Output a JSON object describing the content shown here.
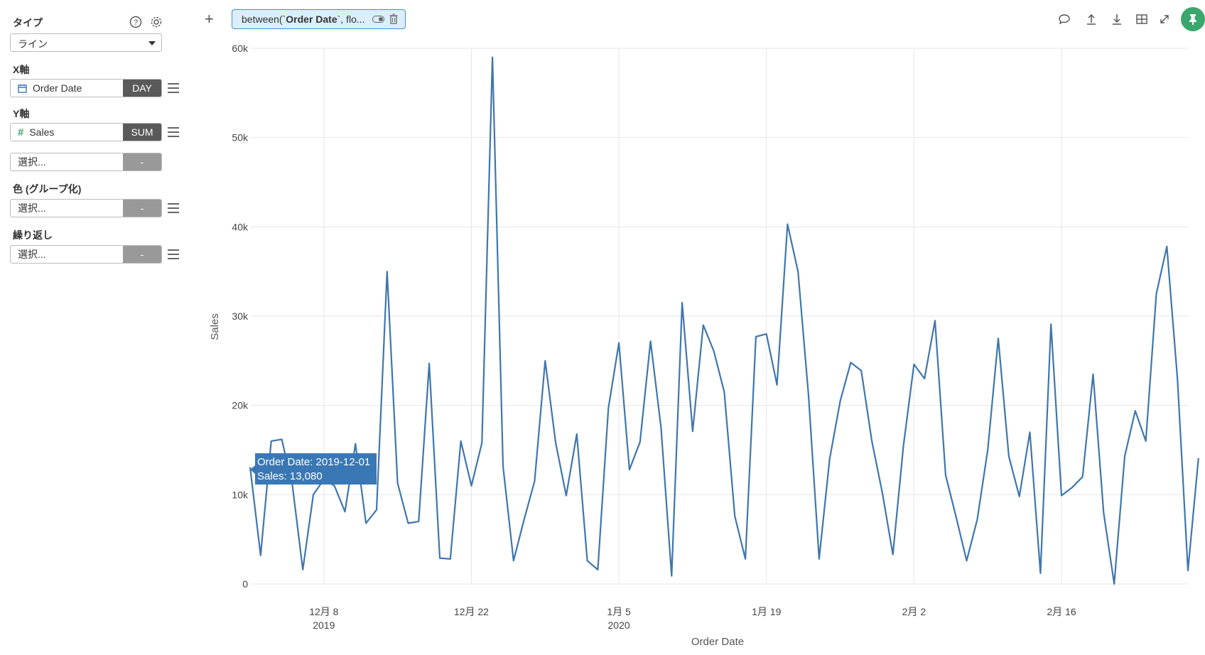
{
  "sidebar": {
    "type_label": "タイプ",
    "type_value": "ライン",
    "x_axis_label": "X軸",
    "x_field": "Order Date",
    "x_agg": "DAY",
    "y_axis_label": "Y軸",
    "y_field": "Sales",
    "y_agg": "SUM",
    "y_extra_placeholder": "選択...",
    "y_extra_agg": "-",
    "color_label": "色 (グループ化)",
    "color_placeholder": "選択...",
    "color_agg": "-",
    "repeat_label": "繰り返し",
    "repeat_placeholder": "選択...",
    "repeat_agg": "-"
  },
  "topbar": {
    "plus": "+",
    "filter_prefix": "between(`",
    "filter_bold": "Order Date",
    "filter_suffix": "`, flo..."
  },
  "icons": {
    "help": "question-circle-icon",
    "settings": "gear-icon",
    "comment": "comment-icon",
    "upload": "upload-icon",
    "download": "download-icon",
    "table": "table-icon",
    "expand": "expand-icon",
    "pin": "pin-icon"
  },
  "colors": {
    "line": "#3f76ad",
    "tooltip": "#3a78b5",
    "pin": "#3aa76d",
    "chip_bg": "#dbeefa",
    "chip_border": "#4a90c8"
  },
  "tooltip": {
    "line1": "Order Date: 2019-12-01",
    "line2": "Sales: 13,080"
  },
  "chart_data": {
    "type": "line",
    "xlabel": "Order Date",
    "ylabel": "Sales",
    "ylim": [
      0,
      60000
    ],
    "xlim": [
      "2019-12-01",
      "2020-02-28"
    ],
    "y_ticks": [
      0,
      10000,
      20000,
      30000,
      40000,
      50000,
      60000
    ],
    "y_tick_labels": [
      "0",
      "10k",
      "20k",
      "30k",
      "40k",
      "50k",
      "60k"
    ],
    "x_ticks": [
      {
        "date": "2019-12-08",
        "label": "12月 8",
        "sublabel": "2019"
      },
      {
        "date": "2019-12-22",
        "label": "12月 22",
        "sublabel": ""
      },
      {
        "date": "2020-01-05",
        "label": "1月 5",
        "sublabel": "2020"
      },
      {
        "date": "2020-01-19",
        "label": "1月 19",
        "sublabel": ""
      },
      {
        "date": "2020-02-02",
        "label": "2月 2",
        "sublabel": ""
      },
      {
        "date": "2020-02-16",
        "label": "2月 16",
        "sublabel": ""
      }
    ],
    "grid": true,
    "series": [
      {
        "start_date": "2019-12-01",
        "values": [
          13080,
          3200,
          16000,
          16200,
          11200,
          1600,
          10000,
          11700,
          11000,
          8100,
          15700,
          6800,
          8300,
          35000,
          11300,
          6800,
          7000,
          24700,
          2900,
          2800,
          16000,
          11000,
          15800,
          59000,
          13200,
          2600,
          7200,
          11500,
          25000,
          15800,
          9900,
          16800,
          2600,
          1600,
          19700,
          27000,
          12800,
          15900,
          27200,
          17500,
          900,
          31500,
          17100,
          29000,
          26100,
          21500,
          7600,
          2800,
          27700,
          28000,
          22300,
          40300,
          35000,
          21000,
          2800,
          14000,
          20500,
          24800,
          23900,
          16000,
          10200,
          3300,
          15500,
          24600,
          23000,
          29500,
          12200,
          7500,
          2600,
          7200,
          15000,
          27500,
          14300,
          9800,
          17000,
          1200,
          29100,
          9900,
          10800,
          12000,
          23500,
          8000,
          0,
          14300,
          19400,
          16000,
          32500,
          37800,
          23000,
          1500,
          14100
        ]
      }
    ]
  }
}
